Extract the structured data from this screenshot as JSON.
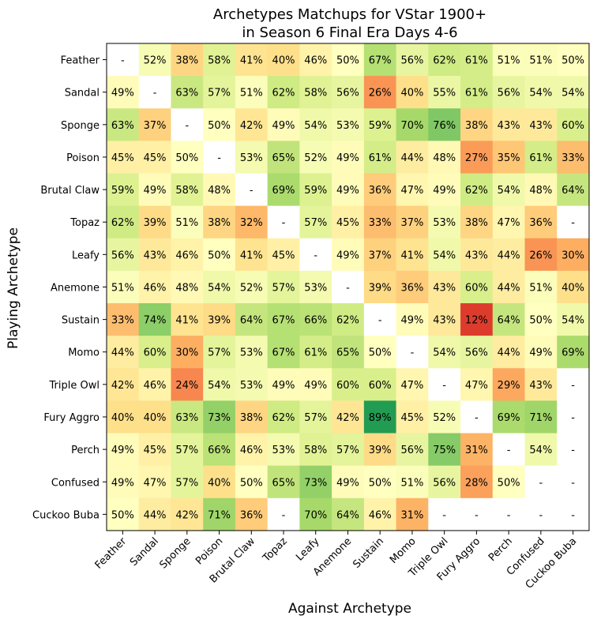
{
  "chart_data": {
    "type": "heatmap",
    "title": [
      "Archetypes Matchups for VStar 1900+",
      "in Season 6 Final Era Days 4-6"
    ],
    "xlabel": "Against Archetype",
    "ylabel": "Playing Archetype",
    "x_categories": [
      "Feather",
      "Sandal",
      "Sponge",
      "Poison",
      "Brutal Claw",
      "Topaz",
      "Leafy",
      "Anemone",
      "Sustain",
      "Momo",
      "Triple Owl",
      "Fury Aggro",
      "Perch",
      "Confused",
      "Cuckoo Buba"
    ],
    "y_categories": [
      "Feather",
      "Sandal",
      "Sponge",
      "Poison",
      "Brutal Claw",
      "Topaz",
      "Leafy",
      "Anemone",
      "Sustain",
      "Momo",
      "Triple Owl",
      "Fury Aggro",
      "Perch",
      "Confused",
      "Cuckoo Buba"
    ],
    "missing_label": "-",
    "value_suffix": "%",
    "colormap": "RdYlGn",
    "value_range": [
      0,
      100
    ],
    "grid": false,
    "values": [
      [
        null,
        52,
        38,
        58,
        41,
        40,
        46,
        50,
        67,
        56,
        62,
        61,
        51,
        51,
        50
      ],
      [
        49,
        null,
        63,
        57,
        51,
        62,
        58,
        56,
        26,
        40,
        55,
        61,
        56,
        54,
        54
      ],
      [
        63,
        37,
        null,
        50,
        42,
        49,
        54,
        53,
        59,
        70,
        76,
        38,
        43,
        43,
        60
      ],
      [
        45,
        45,
        50,
        null,
        53,
        65,
        52,
        49,
        61,
        44,
        48,
        27,
        35,
        61,
        33
      ],
      [
        59,
        49,
        58,
        48,
        null,
        69,
        59,
        49,
        36,
        47,
        49,
        62,
        54,
        48,
        64
      ],
      [
        62,
        39,
        51,
        38,
        32,
        null,
        57,
        45,
        33,
        37,
        53,
        38,
        47,
        36,
        null
      ],
      [
        56,
        43,
        46,
        50,
        41,
        45,
        null,
        49,
        37,
        41,
        54,
        43,
        44,
        26,
        30
      ],
      [
        51,
        46,
        48,
        54,
        52,
        57,
        53,
        null,
        39,
        36,
        43,
        60,
        44,
        51,
        40
      ],
      [
        33,
        74,
        41,
        39,
        64,
        67,
        66,
        62,
        null,
        49,
        43,
        12,
        64,
        50,
        54
      ],
      [
        44,
        60,
        30,
        57,
        53,
        67,
        61,
        65,
        50,
        null,
        54,
        56,
        44,
        49,
        69
      ],
      [
        42,
        46,
        24,
        54,
        53,
        49,
        49,
        60,
        60,
        47,
        null,
        47,
        29,
        43,
        null
      ],
      [
        40,
        40,
        63,
        73,
        38,
        62,
        57,
        42,
        89,
        45,
        52,
        null,
        69,
        71,
        null
      ],
      [
        49,
        45,
        57,
        66,
        46,
        53,
        58,
        57,
        39,
        56,
        75,
        31,
        null,
        54,
        null
      ],
      [
        49,
        47,
        57,
        40,
        50,
        65,
        73,
        49,
        50,
        51,
        56,
        28,
        50,
        null,
        null
      ],
      [
        50,
        44,
        42,
        71,
        36,
        null,
        70,
        64,
        46,
        31,
        null,
        null,
        null,
        null,
        null
      ]
    ]
  }
}
